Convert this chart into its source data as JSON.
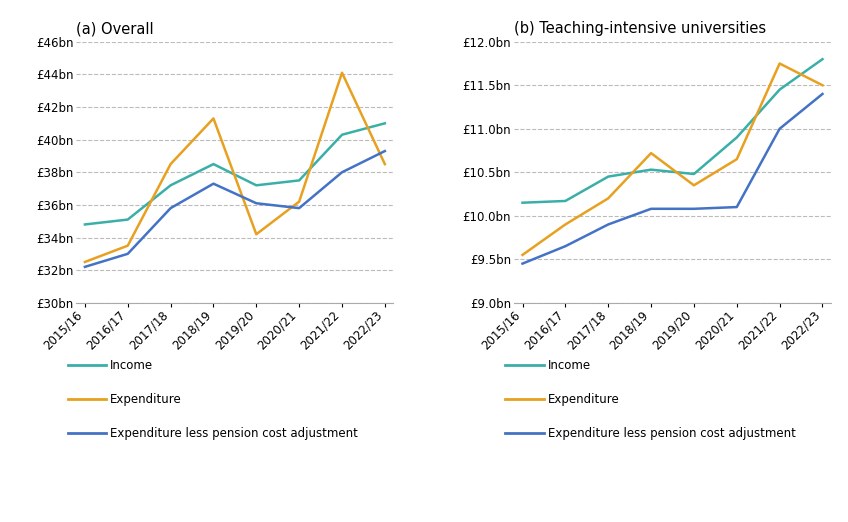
{
  "years": [
    "2015/16",
    "2016/17",
    "2017/18",
    "2018/19",
    "2019/20",
    "2020/21",
    "2021/22",
    "2022/23"
  ],
  "overall": {
    "title": "(a) Overall",
    "income": [
      34.8,
      35.1,
      37.2,
      38.5,
      37.2,
      37.5,
      40.3,
      41.0
    ],
    "expenditure": [
      32.5,
      33.5,
      38.5,
      41.3,
      34.2,
      36.2,
      44.1,
      38.5
    ],
    "exp_less_pension": [
      32.2,
      33.0,
      35.8,
      37.3,
      36.1,
      35.8,
      38.0,
      39.3
    ],
    "ylim": [
      30,
      46
    ],
    "yticks": [
      30,
      32,
      34,
      36,
      38,
      40,
      42,
      44,
      46
    ],
    "ytick_labels": [
      "£30bn",
      "£32bn",
      "£34bn",
      "£36bn",
      "£38bn",
      "£40bn",
      "£42bn",
      "£44bn",
      "£46bn"
    ]
  },
  "teaching": {
    "title": "(b) Teaching-intensive universities",
    "income": [
      10.15,
      10.17,
      10.45,
      10.53,
      10.48,
      10.9,
      11.45,
      11.8
    ],
    "expenditure": [
      9.55,
      9.9,
      10.2,
      10.72,
      10.35,
      10.65,
      11.75,
      11.5
    ],
    "exp_less_pension": [
      9.45,
      9.65,
      9.9,
      10.08,
      10.08,
      10.1,
      11.0,
      11.4
    ],
    "ylim": [
      9.0,
      12.0
    ],
    "yticks": [
      9.0,
      9.5,
      10.0,
      10.5,
      11.0,
      11.5,
      12.0
    ],
    "ytick_labels": [
      "£9.0bn",
      "£9.5bn",
      "£10.0bn",
      "£10.5bn",
      "£11.0bn",
      "£11.5bn",
      "£12.0bn"
    ]
  },
  "colors": {
    "income": "#3AAFA9",
    "expenditure": "#E8A020",
    "exp_less_pension": "#4472C4"
  },
  "legend_labels": [
    "Income",
    "Expenditure",
    "Expenditure less pension cost adjustment"
  ],
  "figsize": [
    8.48,
    5.22
  ],
  "dpi": 100
}
